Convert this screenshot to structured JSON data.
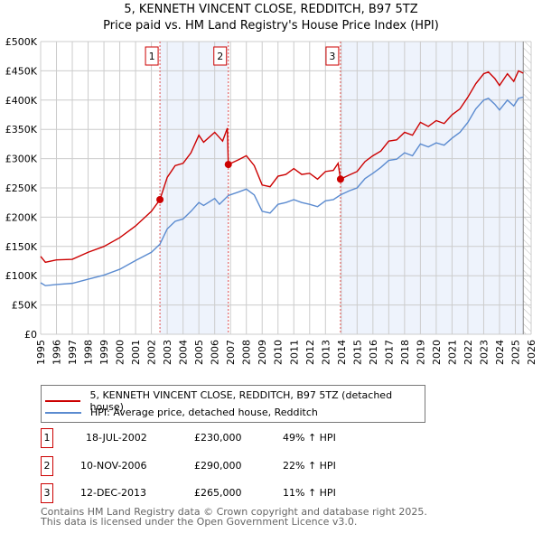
{
  "chart_data": {
    "type": "line",
    "title": "5, KENNETH VINCENT CLOSE, REDDITCH, B97 5TZ",
    "subtitle": "Price paid vs. HM Land Registry's House Price Index (HPI)",
    "xlim": [
      1995,
      2026
    ],
    "ylim": [
      0,
      500000
    ],
    "x_ticks": [
      "1995",
      "1996",
      "1997",
      "1998",
      "1999",
      "2000",
      "2001",
      "2002",
      "2003",
      "2004",
      "2005",
      "2006",
      "2007",
      "2008",
      "2009",
      "2010",
      "2011",
      "2012",
      "2013",
      "2014",
      "2015",
      "2016",
      "2017",
      "2018",
      "2019",
      "2020",
      "2021",
      "2022",
      "2023",
      "2024",
      "2025",
      "2026"
    ],
    "y_ticks": [
      {
        "v": 0,
        "label": "£0"
      },
      {
        "v": 50000,
        "label": "£50K"
      },
      {
        "v": 100000,
        "label": "£100K"
      },
      {
        "v": 150000,
        "label": "£150K"
      },
      {
        "v": 200000,
        "label": "£200K"
      },
      {
        "v": 250000,
        "label": "£250K"
      },
      {
        "v": 300000,
        "label": "£300K"
      },
      {
        "v": 350000,
        "label": "£350K"
      },
      {
        "v": 400000,
        "label": "£400K"
      },
      {
        "v": 450000,
        "label": "£450K"
      },
      {
        "v": 500000,
        "label": "£500K"
      }
    ],
    "grid": true,
    "series": [
      {
        "name": "5, KENNETH VINCENT CLOSE, REDDITCH, B97 5TZ (detached house)",
        "color": "#cc0000",
        "x": [
          1995,
          1995.3,
          1996,
          1997,
          1998,
          1999,
          2000,
          2001,
          2002,
          2002.54,
          2003,
          2003.5,
          2004,
          2004.5,
          2005,
          2005.3,
          2006,
          2006.5,
          2006.8,
          2006.86,
          2007.5,
          2008,
          2008.5,
          2009,
          2009.5,
          2010,
          2010.5,
          2011,
          2011.5,
          2012,
          2012.5,
          2013,
          2013.5,
          2013.8,
          2013.95,
          2014.5,
          2015,
          2015.5,
          2016,
          2016.5,
          2017,
          2017.5,
          2018,
          2018.5,
          2019,
          2019.5,
          2020,
          2020.5,
          2021,
          2021.5,
          2022,
          2022.5,
          2023,
          2023.3,
          2023.7,
          2024,
          2024.5,
          2024.9,
          2025.2,
          2025.5
        ],
        "y": [
          133000,
          123000,
          127000,
          128000,
          140000,
          150000,
          165000,
          185000,
          210000,
          230000,
          268000,
          288000,
          292000,
          310000,
          340000,
          328000,
          345000,
          330000,
          352000,
          290000,
          298000,
          305000,
          288000,
          255000,
          252000,
          270000,
          273000,
          283000,
          273000,
          275000,
          265000,
          278000,
          280000,
          292000,
          265000,
          272000,
          278000,
          295000,
          305000,
          313000,
          330000,
          332000,
          345000,
          340000,
          362000,
          355000,
          365000,
          360000,
          375000,
          385000,
          405000,
          428000,
          445000,
          448000,
          437000,
          425000,
          445000,
          432000,
          450000,
          446000
        ]
      },
      {
        "name": "HPI: Average price, detached house, Redditch",
        "color": "#5b8bd0",
        "x": [
          1995,
          1995.3,
          1996,
          1997,
          1998,
          1999,
          2000,
          2001,
          2002,
          2002.54,
          2003,
          2003.5,
          2004,
          2004.5,
          2005,
          2005.3,
          2006,
          2006.3,
          2006.86,
          2007.5,
          2008,
          2008.5,
          2009,
          2009.5,
          2010,
          2010.5,
          2011,
          2011.5,
          2012,
          2012.5,
          2013,
          2013.5,
          2013.95,
          2014.5,
          2015,
          2015.5,
          2016,
          2016.5,
          2017,
          2017.5,
          2018,
          2018.5,
          2019,
          2019.5,
          2020,
          2020.5,
          2021,
          2021.5,
          2022,
          2022.5,
          2023,
          2023.3,
          2023.7,
          2024,
          2024.5,
          2024.9,
          2025.2,
          2025.5
        ],
        "y": [
          88000,
          83000,
          85000,
          87000,
          94000,
          101000,
          111000,
          126000,
          140000,
          154000,
          180000,
          193000,
          197000,
          210000,
          225000,
          220000,
          232000,
          222000,
          237000,
          243000,
          248000,
          238000,
          210000,
          207000,
          222000,
          225000,
          230000,
          225000,
          222000,
          218000,
          228000,
          230000,
          238000,
          245000,
          250000,
          266000,
          275000,
          285000,
          297000,
          299000,
          310000,
          305000,
          325000,
          320000,
          327000,
          323000,
          335000,
          345000,
          362000,
          385000,
          400000,
          403000,
          393000,
          383000,
          400000,
          390000,
          403000,
          405000
        ]
      }
    ],
    "sales": [
      {
        "id": "1",
        "x": 2002.54,
        "price": 230000,
        "date": "18-JUL-2002",
        "price_label": "£230,000",
        "hpi": "49% ↑ HPI"
      },
      {
        "id": "2",
        "x": 2006.86,
        "price": 290000,
        "date": "10-NOV-2006",
        "price_label": "£290,000",
        "hpi": "22% ↑ HPI"
      },
      {
        "id": "3",
        "x": 2013.95,
        "price": 265000,
        "date": "12-DEC-2013",
        "price_label": "£265,000",
        "hpi": "11% ↑ HPI"
      }
    ],
    "shaded_ranges": [
      [
        2002.54,
        2006.86
      ],
      [
        2013.95,
        2025.5
      ]
    ],
    "forecast_hatch_from": 2025.5
  },
  "footer": [
    "Contains HM Land Registry data © Crown copyright and database right 2025.",
    "This data is licensed under the Open Government Licence v3.0."
  ]
}
